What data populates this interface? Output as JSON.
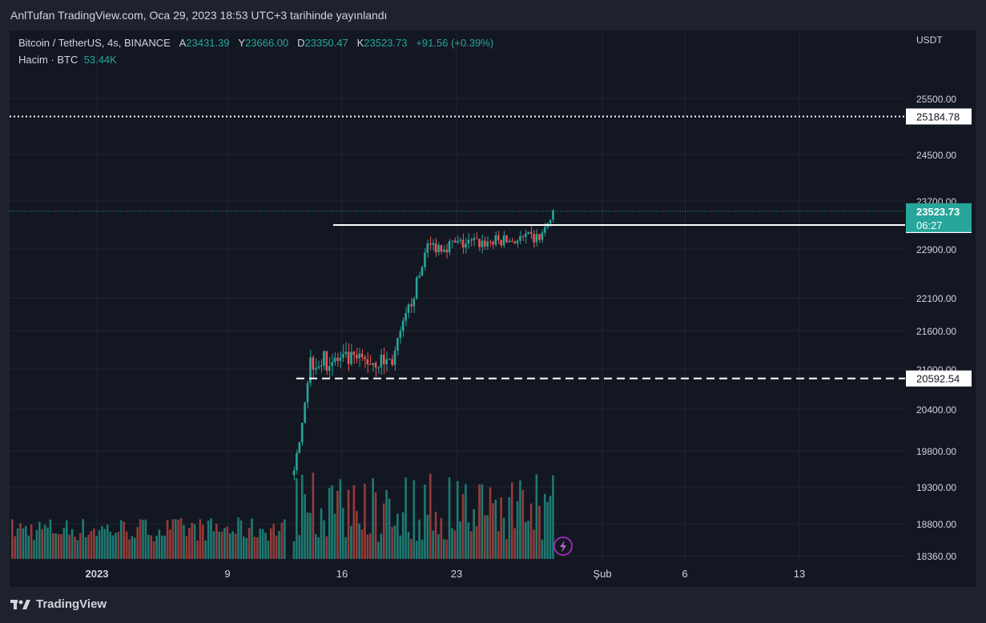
{
  "header": {
    "published": "AnlTufan TradingView.com, Oca 29, 2023 18:53 UTC+3 tarihinde yayınlandı"
  },
  "legend": {
    "symbol": "Bitcoin / TetherUS, 4s, BINANCE",
    "a_label": "A",
    "a_value": "23431.39",
    "y_label": "Y",
    "y_value": "23666.00",
    "d_label": "D",
    "d_value": "23350.47",
    "k_label": "K",
    "k_value": "23523.73",
    "change": "+91.56 (+0.39%)",
    "volume_label": "Hacim · BTC",
    "volume_value": "53.44K"
  },
  "currency": "USDT",
  "footer": {
    "brand": "TradingView"
  },
  "colors": {
    "up": "#26a69a",
    "down": "#ef5350",
    "up_volume": "#1d7a72",
    "down_volume": "#963b39",
    "background": "#131722",
    "grid": "#1f2433",
    "text": "#d1d4dc"
  },
  "chart_data": {
    "type": "candlestick",
    "y_axis_ticks": [
      "25500.00",
      "24500.00",
      "23700.00",
      "22900.00",
      "22100.00",
      "21600.00",
      "21000.00",
      "20400.00",
      "19800.00",
      "19300.00",
      "18800.00",
      "18360.00"
    ],
    "x_axis_ticks": [
      "2023",
      "9",
      "16",
      "23",
      "Şub",
      "6",
      "13"
    ],
    "horizontal_levels": [
      {
        "label": "25184.78",
        "value": 25184.78,
        "style": "dotted"
      },
      {
        "label": "23282.41",
        "value": 23282.41,
        "style": "solid"
      },
      {
        "label": "20592.54",
        "value": 20592.54,
        "style": "dashed"
      }
    ],
    "last_price": {
      "label": "23523.73",
      "value": 23523.73,
      "countdown": "06:27"
    },
    "phases": [
      {
        "start": "2023-01-13",
        "end": "2023-01-14",
        "from": 18900,
        "to": 20900,
        "noise": 200
      },
      {
        "start": "2023-01-14",
        "end": "2023-01-19",
        "from": 20900,
        "to": 20900,
        "noise": 350
      },
      {
        "start": "2023-01-19",
        "end": "2023-01-21",
        "from": 20900,
        "to": 22700,
        "noise": 250
      },
      {
        "start": "2023-01-21",
        "end": "2023-01-28",
        "from": 22900,
        "to": 23050,
        "noise": 250
      },
      {
        "start": "2023-01-28",
        "end": "2023-01-29",
        "from": 23050,
        "to": 23550,
        "noise": 150
      }
    ]
  }
}
